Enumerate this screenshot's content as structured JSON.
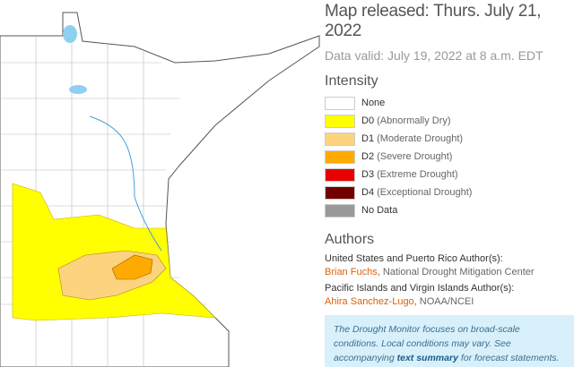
{
  "header": {
    "title": "Map released: Thurs. July 21, 2022",
    "valid": "Data valid: July 19, 2022 at 8 a.m. EDT"
  },
  "legend": {
    "title": "Intensity",
    "items": [
      {
        "code": "None",
        "color": "#ffffff"
      },
      {
        "code": "D0",
        "desc": "(Abnormally Dry)",
        "color": "#ffff00"
      },
      {
        "code": "D1",
        "desc": "(Moderate Drought)",
        "color": "#fcd37f"
      },
      {
        "code": "D2",
        "desc": "(Severe Drought)",
        "color": "#ffaa00"
      },
      {
        "code": "D3",
        "desc": "(Extreme Drought)",
        "color": "#e60000"
      },
      {
        "code": "D4",
        "desc": "(Exceptional Drought)",
        "color": "#730000"
      },
      {
        "code": "No Data",
        "color": "#999999"
      }
    ]
  },
  "authors": {
    "title": "Authors",
    "groups": [
      {
        "heading": "United States and Puerto Rico Author(s):",
        "name": "Brian Fuchs",
        "org": ", National Drought Mitigation Center"
      },
      {
        "heading": "Pacific Islands and Virgin Islands Author(s):",
        "name": "Ahira Sanchez-Lugo",
        "org": ", NOAA/NCEI"
      }
    ]
  },
  "note": {
    "before": "The Drought Monitor focuses on broad-scale conditions. Local conditions may vary. See accompanying ",
    "link": "text summary",
    "after": " for forecast statements."
  }
}
